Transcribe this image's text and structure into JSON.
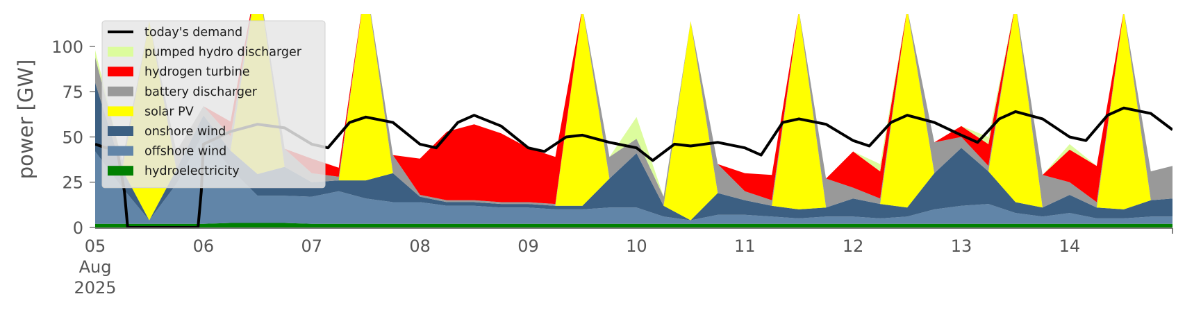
{
  "chart_data": {
    "type": "area",
    "title": "",
    "xlabel": "",
    "ylabel": "power [GW]",
    "xlim": [
      0,
      9.95
    ],
    "ylim": [
      0,
      118
    ],
    "grid": false,
    "legend_placement": "top-left",
    "yticks": [
      0,
      25,
      50,
      75,
      100
    ],
    "ytick_labels": [
      "0",
      "25",
      "50",
      "75",
      "100"
    ],
    "xticks": [
      0,
      1,
      2,
      3,
      4,
      5,
      6,
      7,
      8,
      9
    ],
    "xtick_labels": [
      "05",
      "06",
      "07",
      "08",
      "09",
      "10",
      "11",
      "12",
      "13",
      "14"
    ],
    "xtick_sublabels": [
      "Aug",
      "2025"
    ],
    "x_unit": "days since 05 Aug 2025",
    "x": [
      0,
      0.25,
      0.5,
      0.75,
      1,
      1.25,
      1.5,
      1.75,
      2,
      2.25,
      2.5,
      2.75,
      3,
      3.25,
      3.5,
      3.75,
      4,
      4.25,
      4.5,
      4.75,
      5,
      5.25,
      5.5,
      5.75,
      6,
      6.25,
      6.5,
      6.75,
      7,
      7.25,
      7.5,
      7.75,
      8,
      8.25,
      8.5,
      8.75,
      9,
      9.25,
      9.5,
      9.75,
      9.95
    ],
    "series": [
      {
        "name": "hydroelectricity",
        "color": "#008000",
        "values": [
          2,
          2,
          2,
          2,
          2,
          2.5,
          2.5,
          2.5,
          2,
          2,
          2,
          2,
          2,
          2,
          2,
          2,
          2,
          2,
          2,
          2,
          2,
          2,
          2,
          2,
          2,
          2,
          2,
          2,
          2,
          2,
          2,
          2,
          2,
          2,
          2,
          2,
          2,
          2,
          2,
          2,
          2
        ]
      },
      {
        "name": "offshore wind",
        "color": "#6185a8",
        "values": [
          40,
          20,
          2,
          22,
          50,
          30,
          15,
          15,
          15,
          18,
          14,
          12,
          12,
          10,
          10,
          9,
          9,
          8,
          8,
          9,
          9,
          4,
          2,
          5,
          5,
          4,
          3,
          4,
          4,
          3,
          4,
          8,
          10,
          11,
          6,
          4,
          6,
          3,
          3,
          4,
          4
        ]
      },
      {
        "name": "onshore wind",
        "color": "#3c5f82",
        "values": [
          38,
          10,
          0,
          8,
          10,
          10,
          12,
          16,
          8,
          6,
          10,
          16,
          3,
          2,
          2,
          2,
          2,
          2,
          2,
          16,
          30,
          6,
          0,
          12,
          8,
          6,
          5,
          5,
          10,
          8,
          5,
          20,
          32,
          18,
          6,
          5,
          10,
          6,
          5,
          9,
          10
        ]
      },
      {
        "name": "solar PV",
        "color": "#ffff00",
        "values": [
          0,
          0,
          110,
          0,
          0,
          0,
          110,
          0,
          0,
          0,
          110,
          0,
          0,
          0,
          0,
          0,
          0,
          0,
          110,
          0,
          0,
          0,
          110,
          0,
          0,
          0,
          110,
          0,
          0,
          0,
          110,
          0,
          0,
          0,
          110,
          0,
          0,
          0,
          110,
          0,
          0
        ]
      },
      {
        "name": "battery discharger",
        "color": "#999999",
        "values": [
          14,
          5,
          0,
          10,
          5,
          8,
          0,
          10,
          5,
          2,
          0,
          10,
          1,
          1,
          1,
          1,
          1,
          1,
          0,
          12,
          8,
          5,
          0,
          16,
          5,
          3,
          0,
          16,
          6,
          3,
          0,
          17,
          6,
          3,
          0,
          18,
          7,
          3,
          0,
          16,
          18
        ]
      },
      {
        "name": "hydrogen turbine",
        "color": "#ff0000",
        "values": [
          0,
          0,
          0,
          0,
          0,
          8,
          0,
          0,
          8,
          5,
          0,
          0,
          20,
          38,
          42,
          38,
          30,
          26,
          0,
          0,
          0,
          0,
          0,
          0,
          10,
          14,
          0,
          0,
          20,
          15,
          0,
          0,
          6,
          12,
          0,
          0,
          18,
          20,
          0,
          0,
          0
        ]
      },
      {
        "name": "pumped hydro discharger",
        "color": "#dcfc9d",
        "values": [
          4,
          0,
          0,
          0,
          0,
          0,
          0,
          0,
          0,
          0,
          0,
          0,
          0,
          0,
          0,
          0,
          0,
          0,
          0,
          0,
          12,
          0,
          0,
          0,
          0,
          0,
          0,
          0,
          0,
          4,
          0,
          0,
          0,
          4,
          0,
          0,
          3,
          0,
          0,
          0,
          0
        ]
      }
    ],
    "demand": {
      "name": "today's demand",
      "color": "#000000",
      "x": [
        0,
        0.1,
        0.2,
        0.27,
        0.3,
        0.5,
        0.75,
        0.9,
        0.95,
        0.98,
        1,
        1.25,
        1.5,
        1.75,
        2,
        2.15,
        2.35,
        2.5,
        2.75,
        3,
        3.15,
        3.35,
        3.5,
        3.75,
        4,
        4.15,
        4.35,
        4.5,
        4.75,
        5,
        5.15,
        5.35,
        5.5,
        5.75,
        6,
        6.15,
        6.35,
        6.5,
        6.75,
        7,
        7.15,
        7.35,
        7.5,
        7.75,
        8,
        8.15,
        8.35,
        8.5,
        8.75,
        9,
        9.15,
        9.35,
        9.5,
        9.75,
        9.95
      ],
      "values": [
        46,
        44,
        44,
        20,
        0,
        0,
        0,
        0,
        0,
        20,
        46,
        53,
        57,
        55,
        46,
        44,
        58,
        61,
        58,
        46,
        44,
        58,
        62,
        56,
        44,
        42,
        50,
        51,
        47,
        44,
        37,
        46,
        45,
        47,
        44,
        40,
        58,
        60,
        57,
        48,
        45,
        58,
        62,
        58,
        51,
        47,
        60,
        64,
        60,
        50,
        48,
        62,
        66,
        63,
        54
      ]
    }
  }
}
